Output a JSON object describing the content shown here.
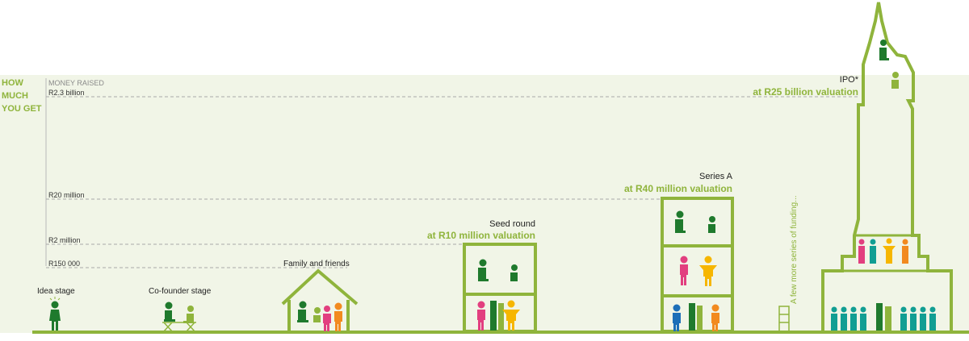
{
  "title": {
    "line1": "HOW",
    "line2": "MUCH",
    "line3": "YOU GET"
  },
  "axis_label": "MONEY RAISED",
  "colors": {
    "accent_green": "#8fb43c",
    "panel_bg": "#f1f5e7",
    "dark_green": "#1f7a2d",
    "pink": "#e23f7f",
    "orange": "#f28a1f",
    "yellow": "#f6b600",
    "blue": "#1d6fb8",
    "teal": "#119e93",
    "gray_text": "#8a8a8a"
  },
  "stages": [
    {
      "label": "Idea stage"
    },
    {
      "label": "Co-founder stage"
    },
    {
      "label": "Family and friends"
    },
    {
      "label": "Seed round",
      "valuation": "at R10 million valuation"
    },
    {
      "label": "Series A",
      "valuation": "at R40 million valuation"
    },
    {
      "label": "A few more series of funding..."
    },
    {
      "label": "IPO*",
      "valuation": "at R25 billion valuation"
    }
  ],
  "chart_data": {
    "type": "other",
    "title": "HOW MUCH YOU GET",
    "ylabel": "MONEY RAISED",
    "reference_lines": [
      {
        "label": "R150 000",
        "value": 150000
      },
      {
        "label": "R2 million",
        "value": 2000000
      },
      {
        "label": "R20 million",
        "value": 20000000
      },
      {
        "label": "R2.3 billion",
        "value": 2300000000
      }
    ],
    "stages": [
      "Idea stage",
      "Co-founder stage",
      "Family and friends",
      "Seed round",
      "Series A",
      "A few more series of funding...",
      "IPO*"
    ],
    "valuations": [
      {
        "stage": "Seed round",
        "label": "at R10 million valuation"
      },
      {
        "stage": "Series A",
        "label": "at R40 million valuation"
      },
      {
        "stage": "IPO*",
        "label": "at R25 billion valuation"
      }
    ]
  }
}
